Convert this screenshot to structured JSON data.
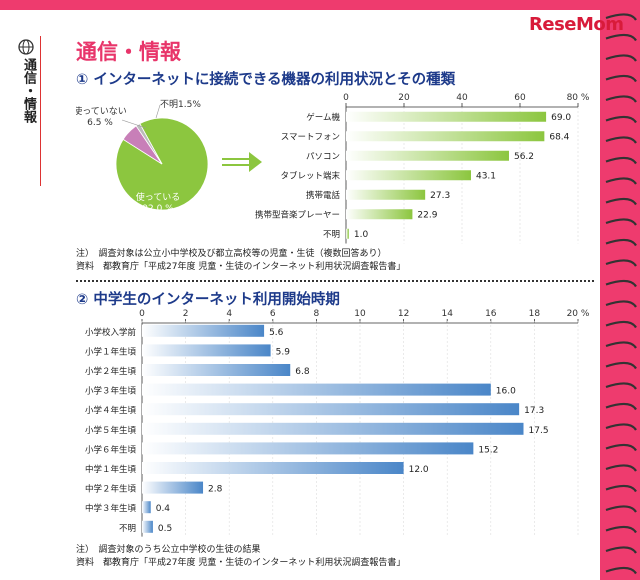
{
  "side_label": "通信・情報",
  "logo": "ReseMom",
  "page_title": "通信・情報",
  "section1": {
    "heading": "① インターネットに接続できる機器の利用状況とその種類",
    "note_line1": "注）　調査対象は公立小中学校及び都立高校等の児童・生徒（複数回答あり）",
    "note_line2": "資料　都教育庁「平成27年度 児童・生徒のインターネット利用状況調査報告書」"
  },
  "section2": {
    "heading": "② 中学生のインターネット利用開始時期",
    "note_line1": "注）　調査対象のうち公立中学校の生徒の結果",
    "note_line2": "資料　都教育庁「平成27年度 児童・生徒のインターネット利用状況調査報告書」"
  },
  "colors": {
    "accent": "#ee3b6e",
    "green": "#8cc63f",
    "blue": "#4a86c8",
    "pie_green": "#8cc63f",
    "pie_pink": "#c87fb8",
    "pie_gray": "#bbbbbb"
  },
  "chart_data": [
    {
      "type": "pie",
      "labels": [
        "使っている",
        "使っていない",
        "不明"
      ],
      "values": [
        92.0,
        6.5,
        1.5
      ],
      "value_labels": [
        "92.0 %",
        "6.5 %",
        "1.5%"
      ]
    },
    {
      "type": "bar",
      "orientation": "horizontal",
      "categories": [
        "ゲーム機",
        "スマートフォン",
        "パソコン",
        "タブレット端末",
        "携帯電話",
        "携帯型音楽プレーヤー",
        "不明"
      ],
      "values": [
        69.0,
        68.4,
        56.2,
        43.1,
        27.3,
        22.9,
        1.0
      ],
      "value_labels": [
        "69.0",
        "68.4",
        "56.2",
        "43.1",
        "27.3",
        "22.9",
        "1.0"
      ],
      "xlim": [
        0,
        80
      ],
      "ticks": [
        "0",
        "20",
        "40",
        "60",
        "80"
      ],
      "unit": "%"
    },
    {
      "type": "bar",
      "orientation": "horizontal",
      "categories": [
        "小学校入学前",
        "小学１年生頃",
        "小学２年生頃",
        "小学３年生頃",
        "小学４年生頃",
        "小学５年生頃",
        "小学６年生頃",
        "中学１年生頃",
        "中学２年生頃",
        "中学３年生頃",
        "不明"
      ],
      "values": [
        5.6,
        5.9,
        6.8,
        16.0,
        17.3,
        17.5,
        15.2,
        12.0,
        2.8,
        0.4,
        0.5
      ],
      "value_labels": [
        "5.6",
        "5.9",
        "6.8",
        "16.0",
        "17.3",
        "17.5",
        "15.2",
        "12.0",
        "2.8",
        "0.4",
        "0.5"
      ],
      "xlim": [
        0,
        20
      ],
      "ticks": [
        "0",
        "2",
        "4",
        "6",
        "8",
        "10",
        "12",
        "14",
        "16",
        "18",
        "20"
      ],
      "unit": "%"
    }
  ]
}
